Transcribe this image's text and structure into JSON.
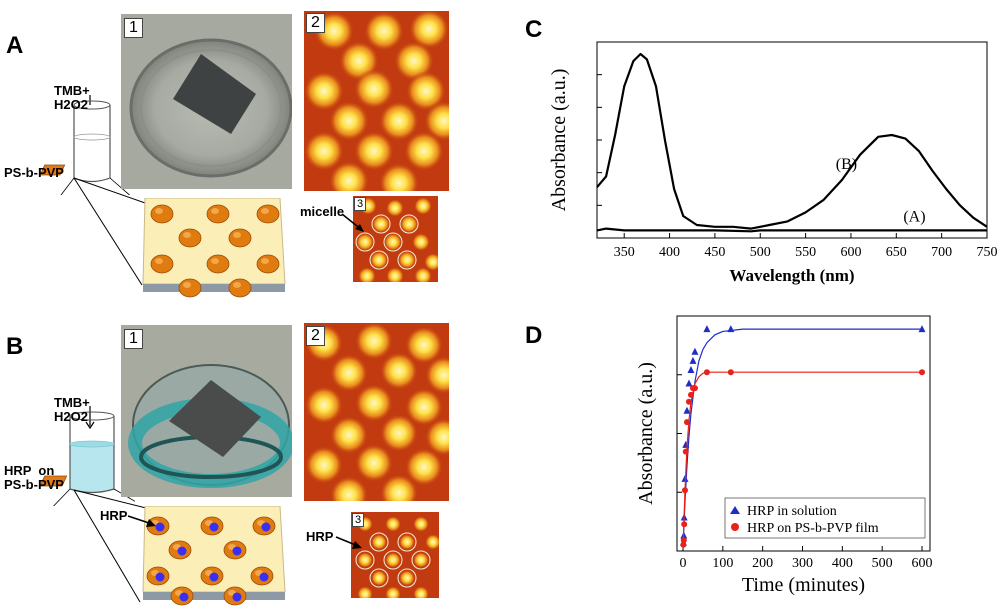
{
  "panels": {
    "A": {
      "letter": "A",
      "reagent": "TMB+\nH2O2",
      "film_label": "PS-b-PVP",
      "img1_num": "1",
      "img2_num": "2",
      "img3_num": "3",
      "micelle_label": "micelle"
    },
    "B": {
      "letter": "B",
      "reagent": "TMB+\nH2O2",
      "film_label": "HRP  on\nPS-b-PVP",
      "img1_num": "1",
      "img2_num": "2",
      "img3_num": "3",
      "hrp_label_schematic": "HRP",
      "hrp_label_afm": "HRP"
    },
    "C": {
      "letter": "C"
    },
    "D": {
      "letter": "D"
    }
  },
  "chart_data": [
    {
      "id": "C",
      "type": "line",
      "xlabel": "Wavelength (nm)",
      "ylabel": "Absorbance (a.u.)",
      "xlim": [
        320,
        750
      ],
      "x_ticks": [
        350,
        400,
        450,
        500,
        550,
        600,
        650,
        700,
        750
      ],
      "ylim": [
        0,
        1.0
      ],
      "series": [
        {
          "name": "(A)",
          "x": [
            320,
            330,
            350,
            400,
            450,
            490,
            500,
            550,
            600,
            650,
            700,
            750
          ],
          "y": [
            0.02,
            0.03,
            0.02,
            0.02,
            0.02,
            0.015,
            0.02,
            0.02,
            0.02,
            0.02,
            0.02,
            0.02
          ]
        },
        {
          "name": "(B)",
          "x": [
            320,
            330,
            340,
            350,
            360,
            368,
            375,
            385,
            395,
            405,
            415,
            430,
            450,
            470,
            490,
            510,
            530,
            550,
            570,
            590,
            610,
            630,
            645,
            660,
            675,
            690,
            705,
            720,
            735,
            750
          ],
          "y": [
            0.26,
            0.32,
            0.55,
            0.82,
            0.96,
            1.0,
            0.97,
            0.82,
            0.52,
            0.25,
            0.1,
            0.05,
            0.04,
            0.04,
            0.03,
            0.05,
            0.07,
            0.12,
            0.19,
            0.3,
            0.44,
            0.54,
            0.55,
            0.53,
            0.46,
            0.35,
            0.25,
            0.16,
            0.09,
            0.04
          ]
        }
      ]
    },
    {
      "id": "D",
      "type": "scatter",
      "xlabel": "Time (minutes)",
      "ylabel": "Absorbance (a.u.)",
      "xlim": [
        0,
        610
      ],
      "x_ticks": [
        0,
        100,
        200,
        300,
        400,
        500,
        600
      ],
      "ylim": [
        0,
        1.0
      ],
      "legend_position": "bottom-right",
      "series": [
        {
          "name": "HRP in solution",
          "color": "#1f2dc7",
          "marker": "triangle",
          "points_x": [
            1,
            2,
            3,
            5,
            7,
            10,
            15,
            20,
            25,
            30,
            60,
            120,
            600
          ],
          "points_y": [
            0.02,
            0.05,
            0.13,
            0.3,
            0.45,
            0.6,
            0.72,
            0.78,
            0.82,
            0.86,
            0.96,
            0.96,
            0.96
          ],
          "fit_x": [
            0,
            5,
            10,
            15,
            20,
            30,
            40,
            50,
            60,
            80,
            100,
            150,
            200,
            300,
            400,
            500,
            600
          ],
          "fit_y": [
            0,
            0.2,
            0.36,
            0.49,
            0.59,
            0.73,
            0.82,
            0.87,
            0.9,
            0.935,
            0.95,
            0.96,
            0.96,
            0.96,
            0.96,
            0.96,
            0.96
          ]
        },
        {
          "name": "HRP on PS-b-PVP film",
          "color": "#e8211a",
          "marker": "circle",
          "points_x": [
            1,
            2,
            3,
            5,
            7,
            10,
            15,
            20,
            25,
            30,
            60,
            120,
            600
          ],
          "points_y": [
            0.01,
            0.03,
            0.1,
            0.25,
            0.42,
            0.55,
            0.64,
            0.67,
            0.7,
            0.7,
            0.77,
            0.77,
            0.77
          ],
          "fit_x": [
            0,
            5,
            10,
            15,
            20,
            30,
            40,
            50,
            60,
            80,
            100,
            150,
            200,
            300,
            400,
            500,
            600
          ],
          "fit_y": [
            0,
            0.25,
            0.44,
            0.56,
            0.64,
            0.72,
            0.75,
            0.765,
            0.77,
            0.77,
            0.77,
            0.77,
            0.77,
            0.77,
            0.77,
            0.77,
            0.77
          ]
        }
      ]
    }
  ],
  "colors": {
    "pad": "#fbeeb6",
    "pad_edge": "#c9b98a",
    "micelle": "#e07b10",
    "hrp": "#3a2ef0",
    "afm_bg": "#c13a10",
    "afm_spot": "#fff0a0",
    "teal": "#2fa6a6"
  }
}
